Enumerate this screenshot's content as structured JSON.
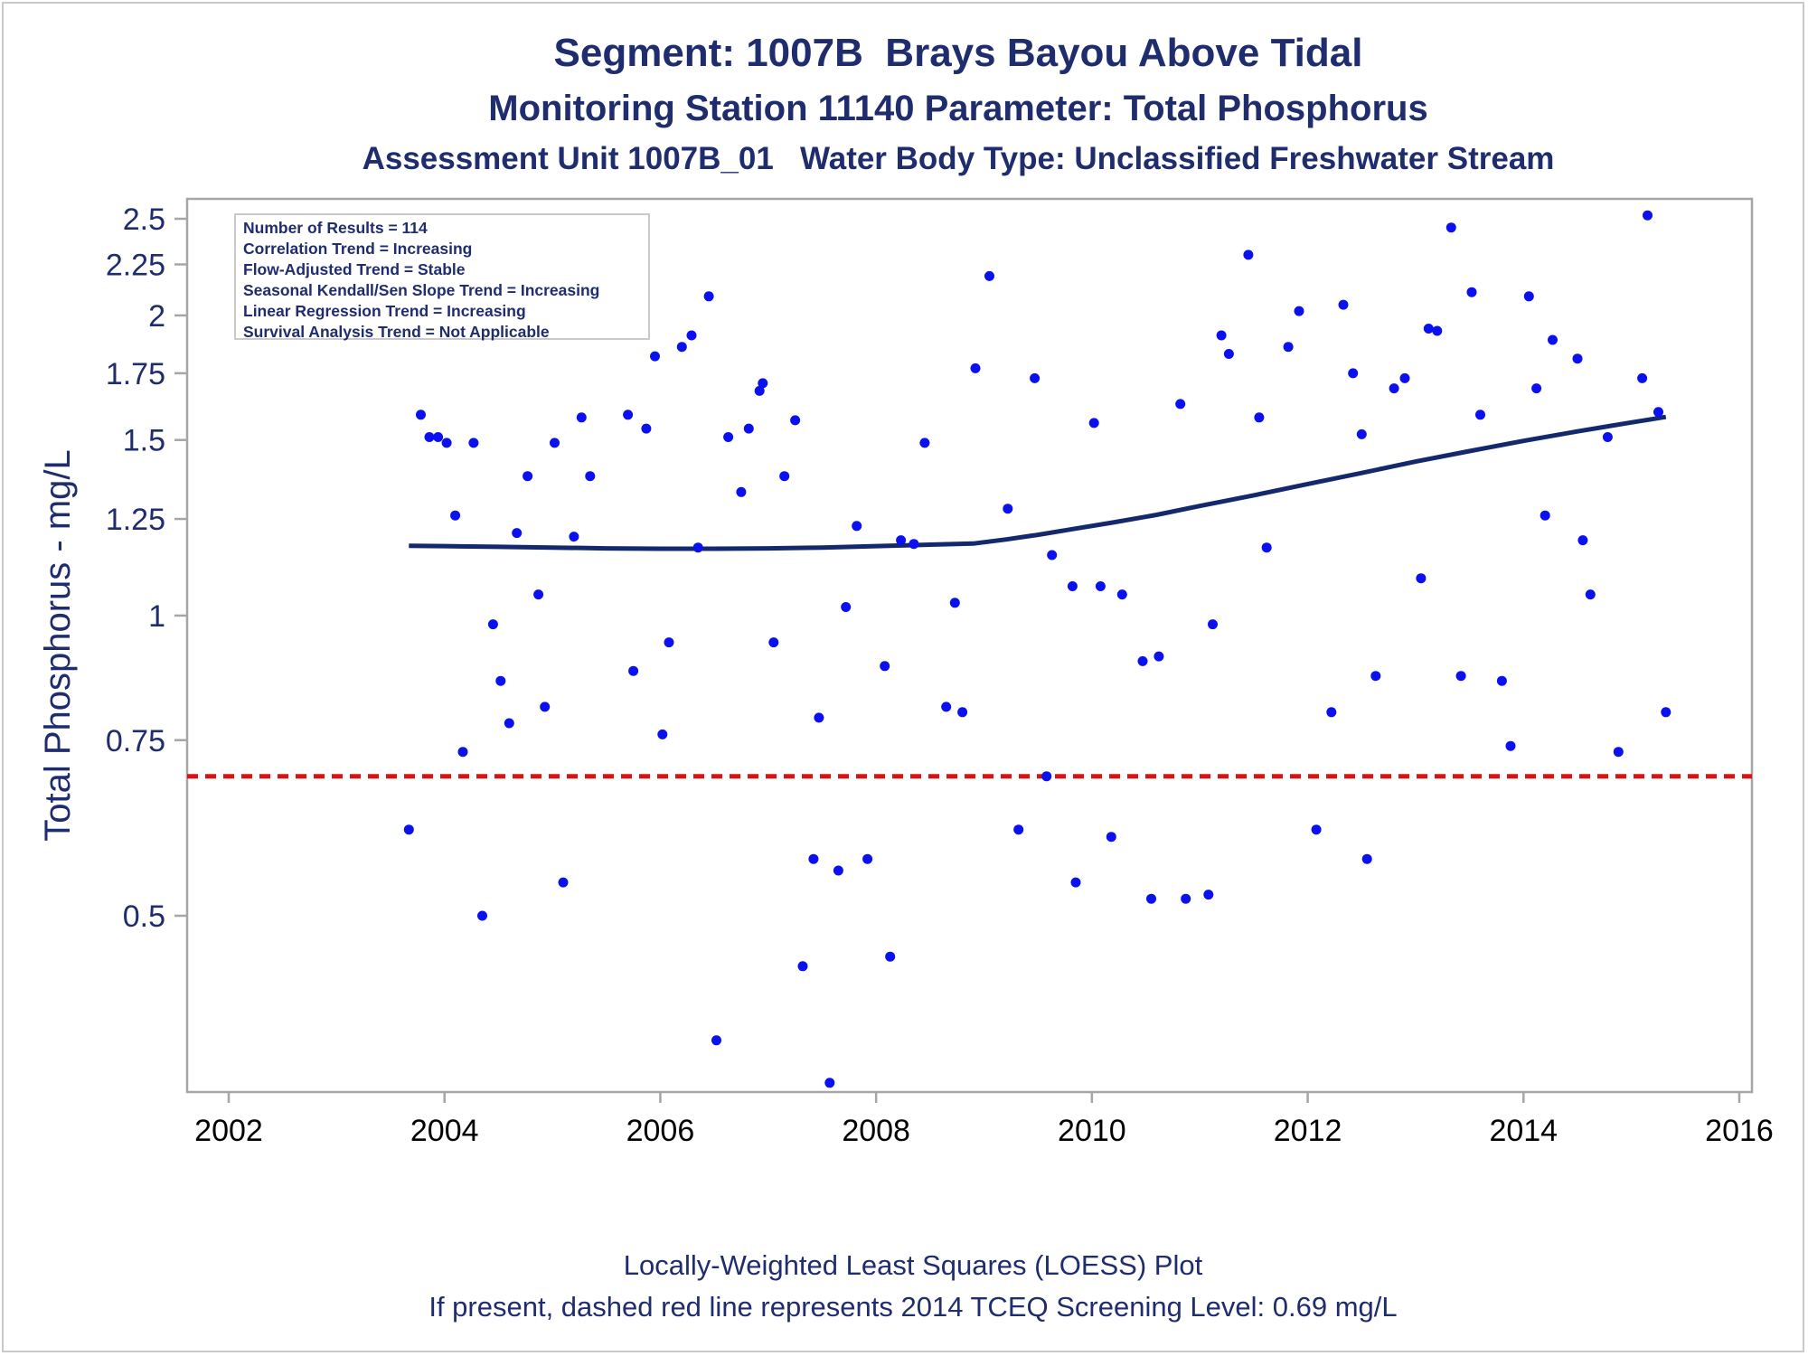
{
  "titles": {
    "line1": "Segment: 1007B  Brays Bayou Above Tidal",
    "line2": "Monitoring Station 11140 Parameter: Total Phosphorus",
    "line3": "Assessment Unit 1007B_01   Water Body Type: Unclassified Freshwater Stream"
  },
  "footnotes": {
    "line1": "Locally-Weighted Least Squares (LOESS) Plot",
    "line2": "If present, dashed red line represents 2014 TCEQ Screening Level: 0.69 mg/L"
  },
  "stats": [
    "Number of Results = 114",
    "Correlation Trend = Increasing",
    "Flow-Adjusted Trend = Stable",
    "Seasonal Kendall/Sen Slope Trend = Increasing",
    "Linear Regression Trend = Increasing",
    "Survival Analysis Trend = Not Applicable"
  ],
  "colors": {
    "points": "#0a10ee",
    "loess": "#14286e",
    "screening": "#dd1111",
    "axis": "#a6a6a6",
    "text": "#1f2d6e"
  },
  "chart_data": {
    "type": "scatter",
    "xlabel": "",
    "ylabel": "Total Phosphorus - mg/L",
    "x_scale": "linear (year)",
    "y_scale": "log",
    "xlim": [
      2002,
      2016
    ],
    "ylim": [
      0.33,
      2.6
    ],
    "x_ticks": [
      2002,
      2004,
      2006,
      2008,
      2010,
      2012,
      2014,
      2016
    ],
    "y_ticks": [
      0.5,
      0.75,
      1,
      1.25,
      1.5,
      1.75,
      2,
      2.25,
      2.5
    ],
    "y_tick_labels": [
      "0.5",
      "0.75",
      "1",
      "1.25",
      "1.5",
      "1.75",
      "2",
      "2.25",
      "2.5"
    ],
    "grid": false,
    "screening_level": 0.69,
    "points": [
      [
        2003.67,
        0.61
      ],
      [
        2003.78,
        1.59
      ],
      [
        2003.86,
        1.51
      ],
      [
        2003.94,
        1.51
      ],
      [
        2004.02,
        1.49
      ],
      [
        2004.1,
        1.26
      ],
      [
        2004.17,
        0.73
      ],
      [
        2004.27,
        1.49
      ],
      [
        2004.35,
        0.5
      ],
      [
        2004.45,
        0.98
      ],
      [
        2004.52,
        0.86
      ],
      [
        2004.6,
        0.78
      ],
      [
        2004.67,
        1.21
      ],
      [
        2004.77,
        1.38
      ],
      [
        2004.87,
        1.05
      ],
      [
        2004.93,
        0.81
      ],
      [
        2005.02,
        1.49
      ],
      [
        2005.1,
        0.54
      ],
      [
        2005.2,
        1.2
      ],
      [
        2005.27,
        1.58
      ],
      [
        2005.35,
        1.38
      ],
      [
        2005.7,
        1.59
      ],
      [
        2005.75,
        0.88
      ],
      [
        2005.87,
        1.54
      ],
      [
        2005.95,
        1.82
      ],
      [
        2006.02,
        0.76
      ],
      [
        2006.08,
        0.94
      ],
      [
        2006.2,
        1.86
      ],
      [
        2006.29,
        1.91
      ],
      [
        2006.35,
        1.17
      ],
      [
        2006.45,
        2.09
      ],
      [
        2006.52,
        0.375
      ],
      [
        2006.63,
        1.51
      ],
      [
        2006.75,
        1.33
      ],
      [
        2006.82,
        1.54
      ],
      [
        2006.92,
        1.68
      ],
      [
        2006.95,
        1.71
      ],
      [
        2007.05,
        0.94
      ],
      [
        2007.15,
        1.38
      ],
      [
        2007.25,
        1.57
      ],
      [
        2007.32,
        0.445
      ],
      [
        2007.42,
        0.57
      ],
      [
        2007.47,
        0.79
      ],
      [
        2007.57,
        0.34
      ],
      [
        2007.65,
        0.555
      ],
      [
        2007.72,
        1.02
      ],
      [
        2007.82,
        1.23
      ],
      [
        2007.92,
        0.57
      ],
      [
        2008.08,
        0.89
      ],
      [
        2008.13,
        0.455
      ],
      [
        2008.23,
        1.19
      ],
      [
        2008.35,
        1.18
      ],
      [
        2008.45,
        1.49
      ],
      [
        2008.65,
        0.81
      ],
      [
        2008.73,
        1.03
      ],
      [
        2008.8,
        0.8
      ],
      [
        2008.92,
        1.77
      ],
      [
        2009.05,
        2.19
      ],
      [
        2009.22,
        1.28
      ],
      [
        2009.32,
        0.61
      ],
      [
        2009.47,
        1.73
      ],
      [
        2009.58,
        0.69
      ],
      [
        2009.63,
        1.15
      ],
      [
        2009.82,
        1.07
      ],
      [
        2009.85,
        0.54
      ],
      [
        2010.02,
        1.56
      ],
      [
        2010.08,
        1.07
      ],
      [
        2010.18,
        0.6
      ],
      [
        2010.28,
        1.05
      ],
      [
        2010.47,
        0.9
      ],
      [
        2010.55,
        0.52
      ],
      [
        2010.62,
        0.91
      ],
      [
        2010.82,
        1.63
      ],
      [
        2010.87,
        0.52
      ],
      [
        2011.08,
        0.525
      ],
      [
        2011.12,
        0.98
      ],
      [
        2011.2,
        1.91
      ],
      [
        2011.27,
        1.83
      ],
      [
        2011.45,
        2.3
      ],
      [
        2011.55,
        1.58
      ],
      [
        2011.62,
        1.17
      ],
      [
        2011.82,
        1.86
      ],
      [
        2011.92,
        2.02
      ],
      [
        2012.08,
        0.61
      ],
      [
        2012.22,
        0.8
      ],
      [
        2012.33,
        2.05
      ],
      [
        2012.42,
        1.75
      ],
      [
        2012.5,
        1.52
      ],
      [
        2012.55,
        0.57
      ],
      [
        2012.63,
        0.87
      ],
      [
        2012.8,
        1.69
      ],
      [
        2012.9,
        1.73
      ],
      [
        2013.05,
        1.09
      ],
      [
        2013.12,
        1.94
      ],
      [
        2013.2,
        1.93
      ],
      [
        2013.33,
        2.45
      ],
      [
        2013.42,
        0.87
      ],
      [
        2013.52,
        2.11
      ],
      [
        2013.6,
        1.59
      ],
      [
        2013.8,
        0.86
      ],
      [
        2013.88,
        0.74
      ],
      [
        2014.05,
        2.09
      ],
      [
        2014.12,
        1.69
      ],
      [
        2014.2,
        1.26
      ],
      [
        2014.27,
        1.89
      ],
      [
        2014.5,
        1.81
      ],
      [
        2014.55,
        1.19
      ],
      [
        2014.62,
        1.05
      ],
      [
        2014.78,
        1.51
      ],
      [
        2014.88,
        0.73
      ],
      [
        2015.1,
        1.73
      ],
      [
        2015.15,
        2.52
      ],
      [
        2015.25,
        1.6
      ],
      [
        2015.32,
        0.8
      ]
    ],
    "loess": [
      [
        2003.67,
        1.175
      ],
      [
        2004.0,
        1.174
      ],
      [
        2004.5,
        1.172
      ],
      [
        2005.0,
        1.17
      ],
      [
        2005.5,
        1.168
      ],
      [
        2006.0,
        1.167
      ],
      [
        2006.5,
        1.167
      ],
      [
        2007.0,
        1.168
      ],
      [
        2007.5,
        1.17
      ],
      [
        2008.0,
        1.174
      ],
      [
        2008.5,
        1.178
      ],
      [
        2008.9,
        1.181
      ],
      [
        2009.2,
        1.192
      ],
      [
        2009.5,
        1.205
      ],
      [
        2009.8,
        1.22
      ],
      [
        2010.2,
        1.24
      ],
      [
        2010.6,
        1.262
      ],
      [
        2011.0,
        1.288
      ],
      [
        2011.5,
        1.32
      ],
      [
        2012.0,
        1.355
      ],
      [
        2012.5,
        1.39
      ],
      [
        2013.0,
        1.427
      ],
      [
        2013.5,
        1.462
      ],
      [
        2014.0,
        1.497
      ],
      [
        2014.5,
        1.53
      ],
      [
        2015.0,
        1.562
      ],
      [
        2015.32,
        1.582
      ]
    ]
  }
}
